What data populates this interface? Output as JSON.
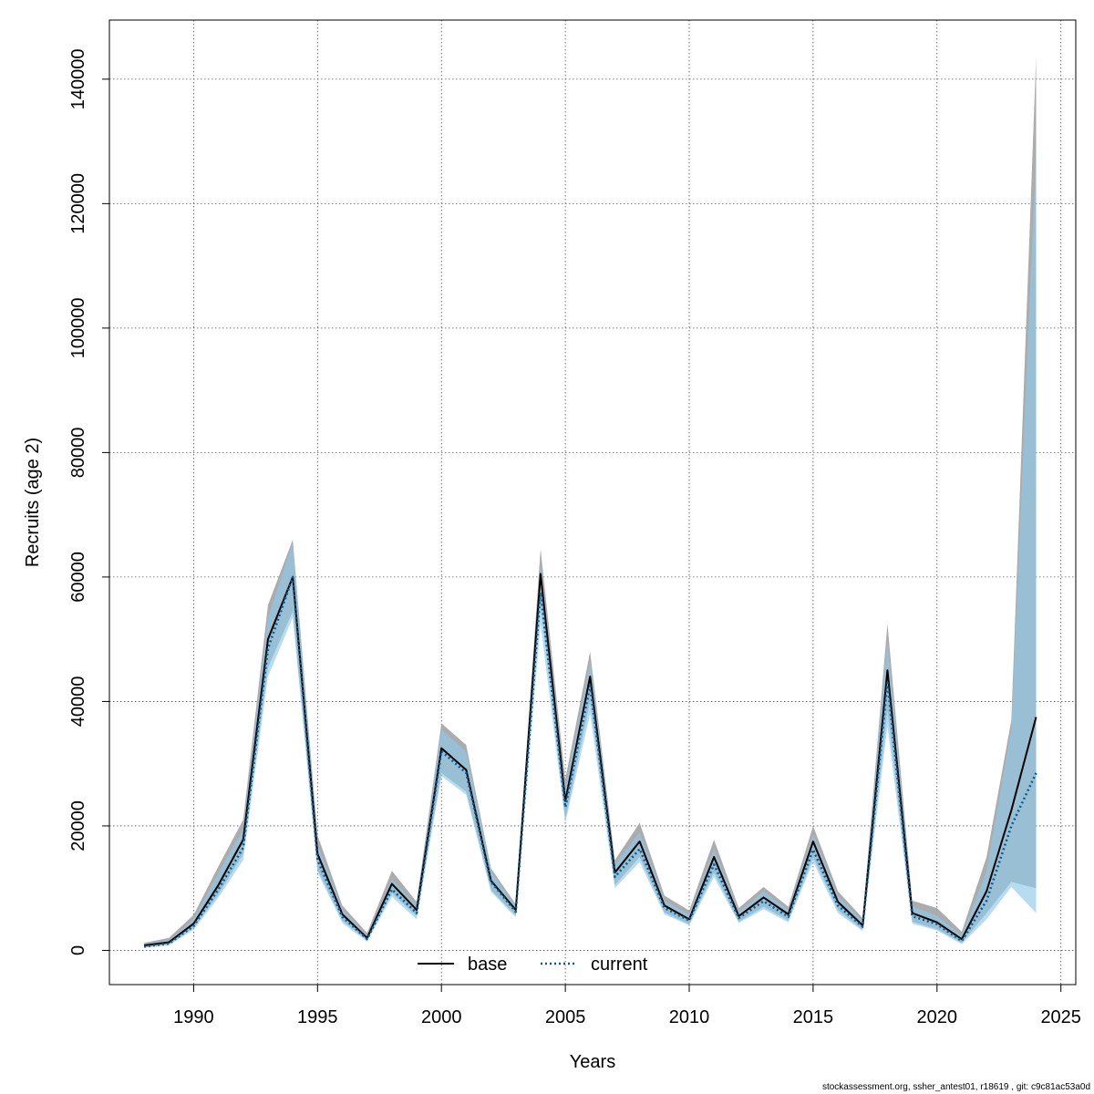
{
  "chart_data": {
    "type": "line",
    "title": "",
    "xlabel": "Years",
    "ylabel": "Recruits (age 2)",
    "xlim": [
      1986.6,
      2025.6
    ],
    "ylim": [
      -5500,
      149500
    ],
    "xticks": [
      1990,
      1995,
      2000,
      2005,
      2010,
      2015,
      2020,
      2025
    ],
    "yticks": [
      0,
      20000,
      40000,
      60000,
      80000,
      100000,
      120000,
      140000
    ],
    "grid": true,
    "legend_position": "bottom-center",
    "x": [
      1988,
      1989,
      1990,
      1991,
      1992,
      1993,
      1994,
      1995,
      1996,
      1997,
      1998,
      1999,
      2000,
      2001,
      2002,
      2003,
      2004,
      2005,
      2006,
      2007,
      2008,
      2009,
      2010,
      2011,
      2012,
      2013,
      2014,
      2015,
      2016,
      2017,
      2018,
      2019,
      2020,
      2021,
      2022,
      2023,
      2024
    ],
    "series": [
      {
        "name": "base",
        "color": "#000000",
        "line_style": "solid",
        "band_color": "#a8a8a8",
        "values": [
          800,
          1300,
          4300,
          10500,
          17800,
          50000,
          60000,
          15500,
          5800,
          2000,
          10700,
          6500,
          32500,
          29000,
          11200,
          6500,
          60500,
          24000,
          44000,
          12500,
          17500,
          7200,
          5000,
          15000,
          5500,
          8500,
          5800,
          17500,
          7800,
          4000,
          45000,
          6000,
          4500,
          1800,
          9500,
          22500,
          37500
        ],
        "lower": [
          500,
          900,
          3600,
          9000,
          15500,
          45500,
          54500,
          13000,
          4800,
          1600,
          9200,
          5500,
          28500,
          25500,
          9700,
          5600,
          56000,
          21000,
          40000,
          10500,
          15000,
          6100,
          4200,
          12500,
          4600,
          7000,
          4800,
          15000,
          6500,
          3300,
          38500,
          4600,
          3400,
          1200,
          6000,
          11000,
          10000
        ],
        "upper": [
          1200,
          2000,
          5700,
          13500,
          21000,
          55500,
          66000,
          18500,
          7200,
          2800,
          12800,
          7800,
          36500,
          33000,
          13200,
          7400,
          64500,
          27500,
          48000,
          14500,
          20500,
          8800,
          6400,
          17800,
          6800,
          10200,
          7000,
          20000,
          9500,
          5200,
          52500,
          8000,
          6800,
          3000,
          15000,
          37000,
          143500
        ]
      },
      {
        "name": "current",
        "color": "#0b5d8f",
        "line_style": "dotted",
        "band_color": "#8ec9ea",
        "values": [
          600,
          1100,
          3900,
          9800,
          16500,
          48500,
          60000,
          14500,
          5400,
          1800,
          9800,
          6000,
          32000,
          28500,
          11000,
          6200,
          57500,
          23000,
          42500,
          11800,
          16300,
          6800,
          4800,
          13800,
          5200,
          7900,
          5400,
          16200,
          7200,
          3800,
          43000,
          5500,
          4200,
          1500,
          8000,
          20000,
          28500
        ],
        "lower": [
          400,
          800,
          3300,
          8500,
          14500,
          44000,
          53500,
          12500,
          4400,
          1400,
          8600,
          5000,
          28000,
          25000,
          9400,
          5300,
          52500,
          20500,
          38000,
          10000,
          14200,
          5800,
          4000,
          11800,
          4400,
          6600,
          4500,
          14200,
          6000,
          3100,
          36000,
          4300,
          3200,
          1000,
          5000,
          10200,
          6000
        ],
        "upper": [
          900,
          1600,
          5000,
          12500,
          19500,
          53500,
          65500,
          17000,
          6600,
          2400,
          11500,
          7100,
          35500,
          32000,
          12800,
          7000,
          62000,
          26000,
          46500,
          13800,
          19000,
          8000,
          5800,
          16300,
          6200,
          9500,
          6500,
          18700,
          8700,
          4700,
          50000,
          7100,
          5600,
          2400,
          12800,
          35500,
          128500
        ]
      }
    ],
    "footer": "stockassessment.org, ssher_antest01, r18619 , git: c9c81ac53a0d"
  }
}
